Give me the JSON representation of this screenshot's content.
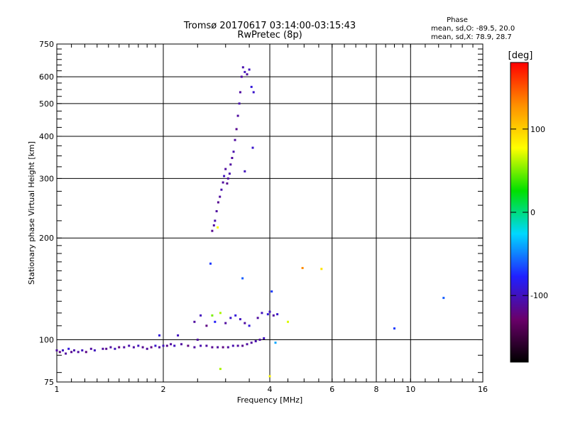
{
  "chart_data": {
    "type": "scatter",
    "title": "Tromsø 20170617 03:14:00-03:15:43",
    "subtitle": "RwPretec (8p)",
    "xlabel": "Frequency [MHz]",
    "ylabel": "Stationary phase Virtual Height [km]",
    "xscale": "log",
    "yscale": "log",
    "xlim": [
      1,
      16
    ],
    "ylim": [
      75,
      750
    ],
    "x_ticks": [
      1,
      2,
      4,
      6,
      8,
      10,
      16
    ],
    "y_ticks": [
      75,
      100,
      200,
      300,
      400,
      500,
      600,
      750
    ],
    "grid": true,
    "stats": {
      "heading": "Phase",
      "line_o": "mean, sd,O: -89.5, 20.0",
      "line_x": "mean, sd,X:  78.9, 28.7"
    },
    "colorbar": {
      "label": "[deg]",
      "tick_labels": [
        "100",
        "0",
        "-100"
      ],
      "tick_values": [
        100,
        0,
        -100
      ],
      "range": [
        -180,
        180
      ],
      "stops": [
        "#000000",
        "#6a006a",
        "#2020ff",
        "#00d8ff",
        "#00e000",
        "#ffff00",
        "#ff9000",
        "#ff0000"
      ]
    },
    "series": [
      {
        "points": [
          [
            1.0,
            93,
            -110
          ],
          [
            1.02,
            92,
            -120
          ],
          [
            1.04,
            93,
            -100
          ],
          [
            1.06,
            91,
            -110
          ],
          [
            1.08,
            94,
            -90
          ],
          [
            1.1,
            92,
            -115
          ],
          [
            1.12,
            93,
            -105
          ],
          [
            1.15,
            92,
            -110
          ],
          [
            1.18,
            93,
            -100
          ],
          [
            1.21,
            92,
            -120
          ],
          [
            1.25,
            94,
            -110
          ],
          [
            1.28,
            93,
            -100
          ],
          [
            1.35,
            94,
            -110
          ],
          [
            1.38,
            94,
            -115
          ],
          [
            1.42,
            95,
            -110
          ],
          [
            1.46,
            94,
            -100
          ],
          [
            1.5,
            95,
            -120
          ],
          [
            1.55,
            95,
            -110
          ],
          [
            1.6,
            96,
            -105
          ],
          [
            1.65,
            95,
            -110
          ],
          [
            1.7,
            96,
            -100
          ],
          [
            1.75,
            95,
            -115
          ],
          [
            1.8,
            94,
            -110
          ],
          [
            1.85,
            95,
            -120
          ],
          [
            1.9,
            96,
            -95
          ],
          [
            1.95,
            95,
            -110
          ],
          [
            2.0,
            96,
            -100
          ],
          [
            2.05,
            96,
            -115
          ],
          [
            2.1,
            97,
            -110
          ],
          [
            2.15,
            96,
            -100
          ],
          [
            2.25,
            97,
            -110
          ],
          [
            2.35,
            96,
            -120
          ],
          [
            2.45,
            95,
            -110
          ],
          [
            2.55,
            96,
            -105
          ],
          [
            2.65,
            96,
            -110
          ],
          [
            2.75,
            95,
            -115
          ],
          [
            2.85,
            95,
            -110
          ],
          [
            2.95,
            95,
            -120
          ],
          [
            3.05,
            95,
            -110
          ],
          [
            3.15,
            96,
            -105
          ],
          [
            3.25,
            96,
            -110
          ],
          [
            3.35,
            96,
            -115
          ],
          [
            3.45,
            97,
            -110
          ],
          [
            3.55,
            98,
            -110
          ],
          [
            3.65,
            99,
            -105
          ],
          [
            3.75,
            100,
            -110
          ],
          [
            3.85,
            101,
            -100
          ]
        ]
      },
      {
        "points": [
          [
            2.75,
            210,
            -115
          ],
          [
            2.78,
            218,
            -110
          ],
          [
            2.8,
            225,
            -105
          ],
          [
            2.83,
            240,
            -110
          ],
          [
            2.86,
            255,
            -115
          ],
          [
            2.89,
            265,
            -110
          ],
          [
            2.92,
            278,
            -105
          ],
          [
            2.95,
            292,
            -110
          ],
          [
            2.97,
            305,
            -100
          ],
          [
            3.0,
            320,
            -110
          ],
          [
            3.03,
            290,
            -115
          ],
          [
            3.05,
            300,
            -110
          ],
          [
            3.08,
            310,
            -105
          ],
          [
            3.1,
            330,
            -110
          ],
          [
            3.13,
            345,
            -110
          ],
          [
            3.16,
            360,
            -105
          ],
          [
            3.19,
            390,
            -110
          ],
          [
            3.22,
            420,
            -115
          ],
          [
            3.25,
            460,
            -110
          ],
          [
            3.28,
            500,
            -105
          ],
          [
            3.3,
            540,
            -110
          ],
          [
            3.33,
            600,
            -110
          ],
          [
            3.36,
            640,
            -105
          ],
          [
            3.4,
            620,
            -100
          ],
          [
            3.45,
            610,
            -110
          ],
          [
            3.5,
            630,
            -100
          ],
          [
            3.55,
            560,
            -90
          ],
          [
            3.6,
            540,
            -95
          ],
          [
            3.58,
            370,
            -95
          ],
          [
            3.4,
            315,
            -100
          ]
        ]
      },
      {
        "points": [
          [
            2.45,
            113,
            -110
          ],
          [
            2.55,
            118,
            -100
          ],
          [
            2.65,
            110,
            -120
          ],
          [
            2.75,
            118,
            50
          ],
          [
            2.8,
            113,
            -80
          ],
          [
            2.9,
            120,
            60
          ],
          [
            3.0,
            112,
            -110
          ],
          [
            3.1,
            116,
            -95
          ],
          [
            3.2,
            118,
            -90
          ],
          [
            3.3,
            115,
            -100
          ],
          [
            3.4,
            112,
            -110
          ],
          [
            3.5,
            110,
            -90
          ],
          [
            3.7,
            116,
            -110
          ],
          [
            3.8,
            120,
            -100
          ],
          [
            3.95,
            119,
            -90
          ],
          [
            4.0,
            121,
            -100
          ],
          [
            4.1,
            118,
            -110
          ],
          [
            4.2,
            119,
            -95
          ]
        ]
      },
      {
        "points": [
          [
            2.72,
            168,
            -70
          ],
          [
            2.85,
            215,
            80
          ],
          [
            2.9,
            82,
            60
          ],
          [
            3.35,
            152,
            -60
          ],
          [
            4.05,
            139,
            -70
          ],
          [
            4.5,
            113,
            70
          ],
          [
            4.95,
            163,
            130
          ],
          [
            5.6,
            162,
            90
          ],
          [
            9.0,
            108,
            -70
          ],
          [
            12.4,
            133,
            -60
          ],
          [
            4.0,
            78,
            80
          ],
          [
            4.15,
            98,
            -40
          ],
          [
            1.95,
            103,
            -90
          ],
          [
            2.2,
            103,
            -100
          ],
          [
            2.5,
            100,
            -110
          ]
        ]
      }
    ]
  }
}
